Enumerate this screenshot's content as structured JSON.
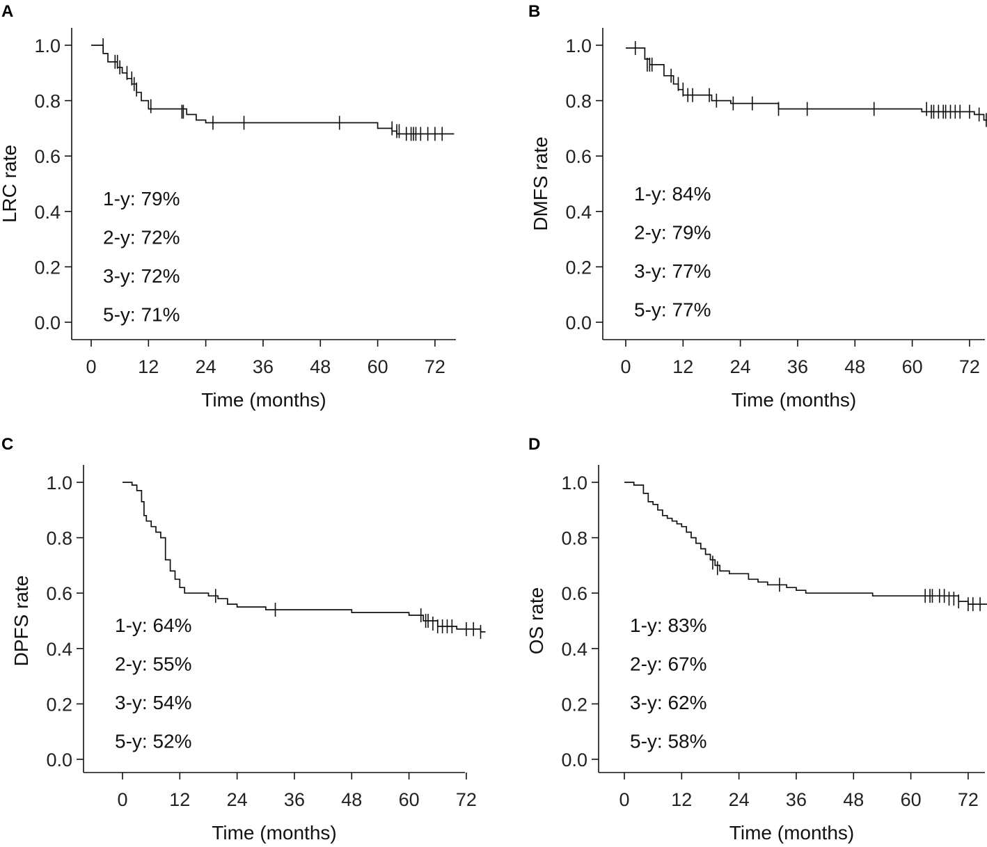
{
  "chart_data": [
    {
      "panel": "A",
      "type": "line",
      "subtype": "kaplan-meier",
      "xlabel": "Time (months)",
      "ylabel": "LRC rate",
      "xticks": [
        0,
        12,
        24,
        36,
        48,
        60,
        72
      ],
      "yticks": [
        "0.0",
        "0.2",
        "0.4",
        "0.6",
        "0.8",
        "1.0"
      ],
      "xlim": [
        -4,
        76
      ],
      "ylim": [
        0,
        1
      ],
      "annotations": [
        "1-y: 79%",
        "2-y: 72%",
        "3-y: 72%",
        "5-y: 71%"
      ],
      "steps": [
        [
          0,
          1.0
        ],
        [
          2.5,
          0.97
        ],
        [
          3.5,
          0.94
        ],
        [
          5.5,
          0.92
        ],
        [
          6.5,
          0.9
        ],
        [
          7.5,
          0.88
        ],
        [
          8.5,
          0.86
        ],
        [
          9.5,
          0.83
        ],
        [
          10.5,
          0.8
        ],
        [
          12,
          0.77
        ],
        [
          20,
          0.75
        ],
        [
          22,
          0.73
        ],
        [
          24,
          0.72
        ],
        [
          60,
          0.7
        ],
        [
          63,
          0.69
        ],
        [
          64,
          0.68
        ]
      ],
      "end_x": 76,
      "censored": [
        [
          2.5,
          1.0
        ],
        [
          5,
          0.94
        ],
        [
          5.5,
          0.94
        ],
        [
          6,
          0.92
        ],
        [
          7.5,
          0.9
        ],
        [
          8.5,
          0.88
        ],
        [
          9,
          0.86
        ],
        [
          9.5,
          0.84
        ],
        [
          12.5,
          0.78
        ],
        [
          19,
          0.76
        ],
        [
          19.3,
          0.76
        ],
        [
          25.5,
          0.72
        ],
        [
          32,
          0.72
        ],
        [
          52,
          0.72
        ],
        [
          63,
          0.7
        ],
        [
          64,
          0.69
        ],
        [
          64.5,
          0.69
        ],
        [
          66,
          0.68
        ],
        [
          67,
          0.68
        ],
        [
          67.5,
          0.68
        ],
        [
          68,
          0.68
        ],
        [
          69,
          0.68
        ],
        [
          70.5,
          0.68
        ],
        [
          72,
          0.68
        ],
        [
          73.5,
          0.68
        ]
      ]
    },
    {
      "panel": "B",
      "type": "line",
      "subtype": "kaplan-meier",
      "xlabel": "Time (months)",
      "ylabel": "DMFS rate",
      "xticks": [
        0,
        12,
        24,
        36,
        48,
        60,
        72
      ],
      "yticks": [
        "0.0",
        "0.2",
        "0.4",
        "0.6",
        "0.8",
        "1.0"
      ],
      "xlim": [
        -4,
        76
      ],
      "ylim": [
        0,
        1
      ],
      "annotations": [
        "1-y: 84%",
        "2-y: 79%",
        "3-y: 77%",
        "5-y: 77%"
      ],
      "steps": [
        [
          0,
          0.99
        ],
        [
          3,
          0.99
        ],
        [
          4,
          0.95
        ],
        [
          5,
          0.93
        ],
        [
          8,
          0.89
        ],
        [
          10,
          0.86
        ],
        [
          11,
          0.84
        ],
        [
          12,
          0.82
        ],
        [
          18,
          0.8
        ],
        [
          22,
          0.79
        ],
        [
          32,
          0.77
        ],
        [
          62,
          0.76
        ],
        [
          73,
          0.75
        ],
        [
          75,
          0.73
        ]
      ],
      "end_x": 76,
      "censored": [
        [
          2,
          0.99
        ],
        [
          4.5,
          0.93
        ],
        [
          5,
          0.93
        ],
        [
          5.5,
          0.93
        ],
        [
          9.5,
          0.89
        ],
        [
          11,
          0.86
        ],
        [
          12,
          0.84
        ],
        [
          13,
          0.82
        ],
        [
          14,
          0.82
        ],
        [
          17.5,
          0.82
        ],
        [
          19,
          0.8
        ],
        [
          22.5,
          0.79
        ],
        [
          26.5,
          0.79
        ],
        [
          32,
          0.77
        ],
        [
          38,
          0.77
        ],
        [
          52,
          0.77
        ],
        [
          63,
          0.77
        ],
        [
          64,
          0.76
        ],
        [
          64.5,
          0.76
        ],
        [
          65.5,
          0.76
        ],
        [
          66.5,
          0.76
        ],
        [
          67,
          0.76
        ],
        [
          68,
          0.76
        ],
        [
          69,
          0.76
        ],
        [
          70,
          0.76
        ],
        [
          72,
          0.76
        ],
        [
          74,
          0.75
        ],
        [
          75.5,
          0.73
        ]
      ]
    },
    {
      "panel": "C",
      "type": "line",
      "subtype": "kaplan-meier",
      "xlabel": "Time (months)",
      "ylabel": "DPFS rate",
      "xticks": [
        0,
        12,
        24,
        36,
        48,
        60,
        72
      ],
      "yticks": [
        "0.0",
        "0.2",
        "0.4",
        "0.6",
        "0.8",
        "1.0"
      ],
      "xlim": [
        -4,
        76
      ],
      "ylim": [
        0,
        1
      ],
      "annotations": [
        "1-y: 64%",
        "2-y: 55%",
        "3-y: 54%",
        "5-y: 52%"
      ],
      "steps": [
        [
          0,
          1.0
        ],
        [
          2,
          0.99
        ],
        [
          3,
          0.97
        ],
        [
          4,
          0.93
        ],
        [
          4.5,
          0.88
        ],
        [
          5,
          0.86
        ],
        [
          6,
          0.84
        ],
        [
          7,
          0.82
        ],
        [
          8,
          0.8
        ],
        [
          9,
          0.72
        ],
        [
          10,
          0.68
        ],
        [
          11,
          0.65
        ],
        [
          12,
          0.62
        ],
        [
          13,
          0.6
        ],
        [
          18,
          0.59
        ],
        [
          20,
          0.58
        ],
        [
          22,
          0.56
        ],
        [
          24,
          0.55
        ],
        [
          30,
          0.54
        ],
        [
          48,
          0.53
        ],
        [
          60,
          0.52
        ],
        [
          63,
          0.5
        ],
        [
          66,
          0.48
        ],
        [
          70,
          0.47
        ],
        [
          75,
          0.46
        ]
      ],
      "end_x": 76,
      "censored": [
        [
          19.5,
          0.59
        ],
        [
          32,
          0.54
        ],
        [
          62.5,
          0.52
        ],
        [
          63.5,
          0.5
        ],
        [
          64,
          0.5
        ],
        [
          65,
          0.49
        ],
        [
          66,
          0.48
        ],
        [
          67,
          0.48
        ],
        [
          68,
          0.48
        ],
        [
          69,
          0.48
        ],
        [
          72,
          0.47
        ],
        [
          73.5,
          0.47
        ],
        [
          75,
          0.46
        ]
      ]
    },
    {
      "panel": "D",
      "type": "line",
      "subtype": "kaplan-meier",
      "xlabel": "Time (months)",
      "ylabel": "OS rate",
      "xticks": [
        0,
        12,
        24,
        36,
        48,
        60,
        72
      ],
      "yticks": [
        "0.0",
        "0.2",
        "0.4",
        "0.6",
        "0.8",
        "1.0"
      ],
      "xlim": [
        -4,
        76
      ],
      "ylim": [
        0,
        1
      ],
      "annotations": [
        "1-y: 83%",
        "2-y: 67%",
        "3-y: 62%",
        "5-y: 58%"
      ],
      "steps": [
        [
          0,
          1.0
        ],
        [
          2,
          0.99
        ],
        [
          4,
          0.96
        ],
        [
          5,
          0.93
        ],
        [
          6,
          0.92
        ],
        [
          7,
          0.9
        ],
        [
          8,
          0.88
        ],
        [
          9,
          0.87
        ],
        [
          10,
          0.86
        ],
        [
          11,
          0.85
        ],
        [
          12,
          0.84
        ],
        [
          13,
          0.82
        ],
        [
          14,
          0.8
        ],
        [
          15,
          0.78
        ],
        [
          16,
          0.76
        ],
        [
          17,
          0.74
        ],
        [
          18,
          0.72
        ],
        [
          19,
          0.7
        ],
        [
          20,
          0.68
        ],
        [
          22,
          0.67
        ],
        [
          26,
          0.65
        ],
        [
          28,
          0.64
        ],
        [
          30,
          0.63
        ],
        [
          34,
          0.62
        ],
        [
          36,
          0.61
        ],
        [
          38,
          0.6
        ],
        [
          52,
          0.59
        ],
        [
          70,
          0.57
        ],
        [
          72,
          0.56
        ]
      ],
      "end_x": 76,
      "censored": [
        [
          18.5,
          0.71
        ],
        [
          19.5,
          0.69
        ],
        [
          32.5,
          0.63
        ],
        [
          63,
          0.59
        ],
        [
          64,
          0.59
        ],
        [
          64.5,
          0.59
        ],
        [
          66,
          0.59
        ],
        [
          67,
          0.59
        ],
        [
          68,
          0.58
        ],
        [
          69,
          0.58
        ],
        [
          70,
          0.57
        ],
        [
          72,
          0.56
        ],
        [
          73,
          0.56
        ],
        [
          74.5,
          0.56
        ]
      ]
    }
  ]
}
